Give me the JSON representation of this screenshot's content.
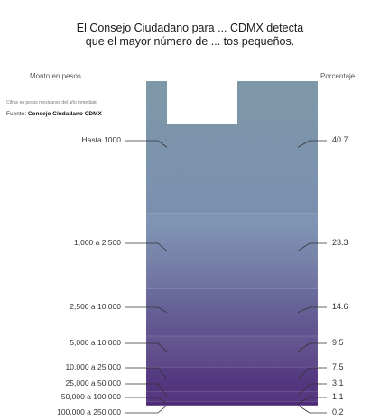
{
  "title_line1": "El Consejo Ciudadano para ... CDMX detecta",
  "title_line2": "que el mayor número de ... tos pequeños.",
  "left_header": "Monto en pesos",
  "right_header": "Porcentaje",
  "note": "Cifras en pesos mexicanos del año inmediato",
  "source_prefix": "Fuente:",
  "source_name": "Consejo Ciudadano CDMX",
  "colors": {
    "top": "#7e98a8",
    "bottom": "#4e2a78",
    "cutout": "#ffffff",
    "ticks": "#333333"
  },
  "chart_data": {
    "type": "bar",
    "orientation": "stacked-column",
    "categories": [
      "Hasta 1000",
      "1,000 a 2,500",
      "2,500 a 10,000",
      "5,000 a 10,000",
      "10,000 a 25,000",
      "25,000 a 50,000",
      "50,000 a 100,000",
      "100,000 a 250,000"
    ],
    "values": [
      40.7,
      23.3,
      14.6,
      9.5,
      7.5,
      3.1,
      1.1,
      0.2
    ],
    "value_labels": [
      "40.7",
      "23.3",
      "14.6",
      "9.5",
      "7.5",
      "3.1",
      "1.1",
      "0.2"
    ],
    "xlabel": "Monto en pesos",
    "ylabel": "Porcentaje",
    "ylim": [
      0,
      100
    ]
  }
}
